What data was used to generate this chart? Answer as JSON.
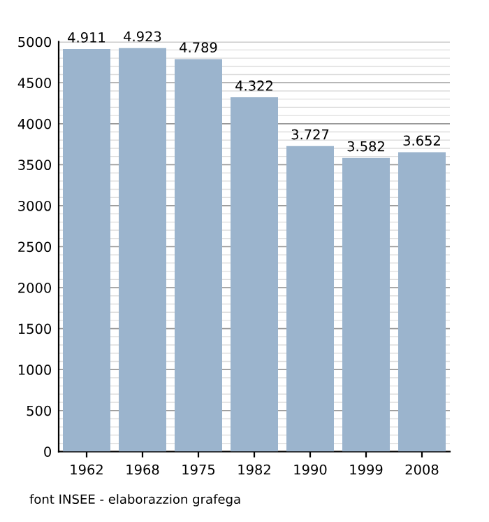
{
  "chart_data": {
    "type": "bar",
    "categories": [
      "1962",
      "1968",
      "1975",
      "1982",
      "1990",
      "1999",
      "2008"
    ],
    "values": [
      4911,
      4923,
      4789,
      4322,
      3727,
      3582,
      3652
    ],
    "value_labels": [
      "4.911",
      "4.923",
      "4.789",
      "4.322",
      "3.727",
      "3.582",
      "3.652"
    ],
    "color": "#9bb4cd",
    "ylim": [
      0,
      5000
    ],
    "yticks": [
      0,
      500,
      1000,
      1500,
      2000,
      2500,
      3000,
      3500,
      4000,
      4500,
      5000
    ],
    "grid": "y",
    "annotations": [
      "font INSEE - elaborazzion grafega"
    ]
  }
}
